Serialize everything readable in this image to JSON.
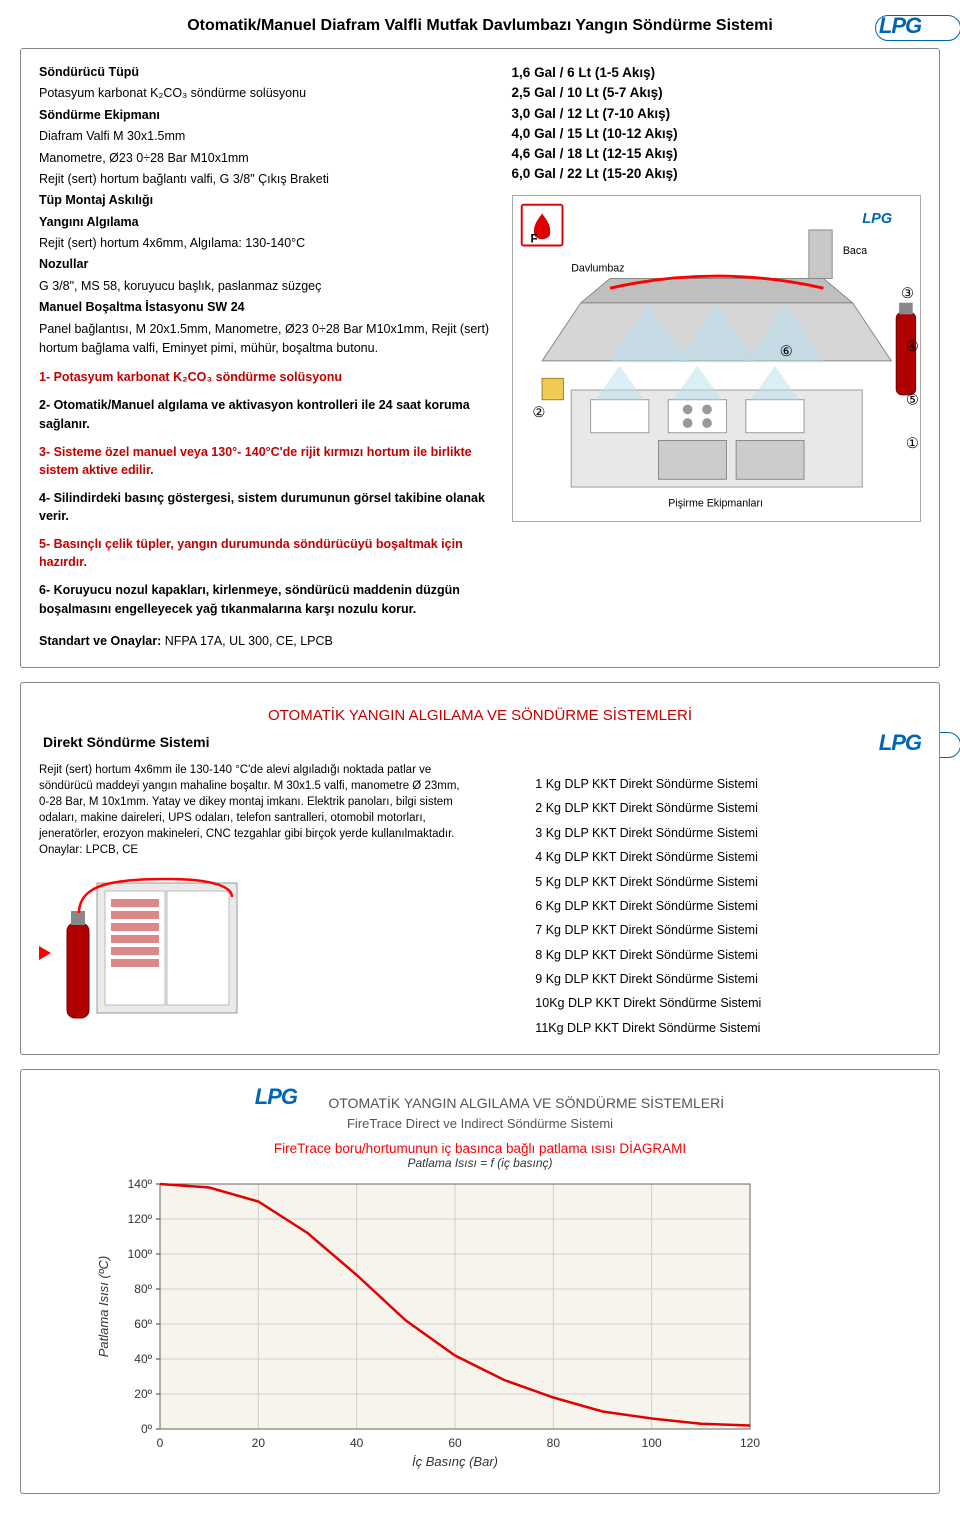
{
  "page_title": "Otomatik/Manuel Diafram Valfli Mutfak Davlumbazı Yangın Söndürme Sistemi",
  "logo_text": "LPG",
  "specs": [
    {
      "bold": true,
      "text": "Söndürücü Tüpü"
    },
    {
      "bold": false,
      "text": "Potasyum karbonat K₂CO₃ söndürme solüsyonu"
    },
    {
      "bold": true,
      "text": "Söndürme Ekipmanı"
    },
    {
      "bold": false,
      "text": "Diafram Valfi  M 30x1.5mm"
    },
    {
      "bold": false,
      "text": "Manometre, Ø23 0÷28 Bar M10x1mm"
    },
    {
      "bold": false,
      "text": "Rejit (sert) hortum bağlantı valfi, G 3/8\" Çıkış Braketi"
    },
    {
      "bold": true,
      "text": "Tüp Montaj Askılığı"
    },
    {
      "bold": true,
      "text": "Yangını Algılama"
    },
    {
      "bold": false,
      "text": "Rejit (sert) hortum 4x6mm, Algılama: 130-140°C"
    },
    {
      "bold": true,
      "text": "Nozullar"
    },
    {
      "bold": false,
      "text": "G 3/8\", MS 58, koruyucu başlık, paslanmaz süzgeç"
    },
    {
      "bold": true,
      "text": "Manuel Boşaltma İstasyonu SW 24"
    },
    {
      "bold": false,
      "text": "Panel bağlantısı, M 20x1.5mm, Manometre, Ø23 0÷28 Bar M10x1mm, Rejit (sert) hortum bağlama valfi, Eminyet pimi, mühür, boşaltma butonu."
    }
  ],
  "features": [
    {
      "color": "red",
      "text": "1- Potasyum karbonat K₂CO₃ söndürme solüsyonu"
    },
    {
      "color": "black",
      "text": "2- Otomatik/Manuel algılama ve aktivasyon kontrolleri ile 24 saat koruma sağlanır."
    },
    {
      "color": "red",
      "text": "3- Sisteme özel manuel veya 130°- 140°C'de rijit kırmızı hortum ile birlikte sistem aktive edilir."
    },
    {
      "color": "black",
      "text": "4- Silindirdeki basınç göstergesi, sistem durumunun görsel takibine olanak verir."
    },
    {
      "color": "red",
      "text": "5- Basınçlı çelik tüpler, yangın durumunda söndürücüyü boşaltmak için hazırdır."
    },
    {
      "color": "black",
      "text": "6- Koruyucu nozul kapakları, kirlenmeye, söndürücü maddenin düzgün boşalmasını engelleyecek yağ tıkanmalarına karşı nozulu korur."
    }
  ],
  "standards_label": "Standart ve Onaylar: ",
  "standards_value": "NFPA 17A, UL 300, CE, LPCB",
  "capacities": [
    "1,6 Gal / 6 Lt  (1-5 Akış)",
    "2,5 Gal / 10 Lt  (5-7 Akış)",
    "3,0 Gal / 12 Lt  (7-10 Akış)",
    "4,0 Gal / 15 Lt (10-12 Akış)",
    "4,6 Gal / 18 Lt (12-15 Akış)",
    "6,0 Gal / 22 Lt (15-20 Akış)"
  ],
  "diagram_labels": {
    "fire_class": "F",
    "davlumbaz": "Davlumbaz",
    "baca": "Baca",
    "pisirme": "Pişirme Ekipmanları",
    "n1": "①",
    "n2": "②",
    "n3": "③",
    "n4": "④",
    "n5": "⑤",
    "n6": "⑥"
  },
  "section2_title": "OTOMATİK YANGIN ALGILAMA VE SÖNDÜRME SİSTEMLERİ",
  "direct_heading": "Direkt Söndürme Sistemi",
  "direct_desc": "Rejit (sert) hortum 4x6mm ile 130-140 °C'de alevi algıladığı noktada patlar ve söndürücü maddeyi yangın mahaline boşaltır. M 30x1.5 valfi, manometre Ø 23mm, 0-28 Bar, M 10x1mm. Yatay ve dikey montaj imkanı. Elektrik panoları, bilgi sistem odaları, makine daireleri, UPS odaları, telefon santralleri, otomobil motorları, jeneratörler, erozyon makineleri, CNC tezgahlar gibi birçok yerde kullanılmaktadır.",
  "direct_approvals": "Onaylar: LPCB, CE",
  "direct_products": [
    "1 Kg DLP KKT Direkt Söndürme Sistemi",
    "2 Kg DLP KKT Direkt Söndürme Sistemi",
    "3 Kg DLP KKT Direkt Söndürme Sistemi",
    "4 Kg DLP KKT Direkt Söndürme Sistemi",
    "5 Kg DLP KKT Direkt Söndürme Sistemi",
    "6 Kg DLP KKT Direkt Söndürme Sistemi",
    "7 Kg DLP KKT Direkt Söndürme Sistemi",
    "8 Kg DLP KKT Direkt Söndürme Sistemi",
    "9 Kg DLP KKT Direkt Söndürme Sistemi",
    "10Kg DLP KKT Direkt Söndürme Sistemi",
    "11Kg DLP KKT Direkt Söndürme Sistemi"
  ],
  "chart": {
    "title_line1": "OTOMATİK YANGIN ALGILAMA VE SÖNDÜRME SİSTEMLERİ",
    "title_line2": "FireTrace Direct ve Indirect Söndürme Sistemi",
    "title_red": "FireTrace boru/hortumunun iç basınca bağlı patlama ısısı DİAGRAMI",
    "subtitle": "Patlama Isısı = f (iç basınç)",
    "xlabel": "İç Basınç (Bar)",
    "ylabel": "Patlama Isısı (ºC)",
    "xlim": [
      0,
      120
    ],
    "ylim": [
      0,
      140
    ],
    "xticks": [
      0,
      20,
      40,
      60,
      80,
      100,
      120
    ],
    "yticks": [
      0,
      20,
      40,
      60,
      80,
      100,
      120,
      140
    ],
    "ytick_labels": [
      "0º",
      "20º",
      "40º",
      "60º",
      "80º",
      "100º",
      "120º",
      "140º"
    ],
    "line_color": "#e30000",
    "grid_color": "#cfcfcf",
    "bg_color": "#f6f4ed",
    "data_points": [
      {
        "x": 0,
        "y": 140
      },
      {
        "x": 10,
        "y": 138
      },
      {
        "x": 20,
        "y": 130
      },
      {
        "x": 30,
        "y": 112
      },
      {
        "x": 40,
        "y": 88
      },
      {
        "x": 50,
        "y": 62
      },
      {
        "x": 60,
        "y": 42
      },
      {
        "x": 70,
        "y": 28
      },
      {
        "x": 80,
        "y": 18
      },
      {
        "x": 90,
        "y": 10
      },
      {
        "x": 100,
        "y": 6
      },
      {
        "x": 110,
        "y": 3
      },
      {
        "x": 120,
        "y": 2
      }
    ]
  }
}
